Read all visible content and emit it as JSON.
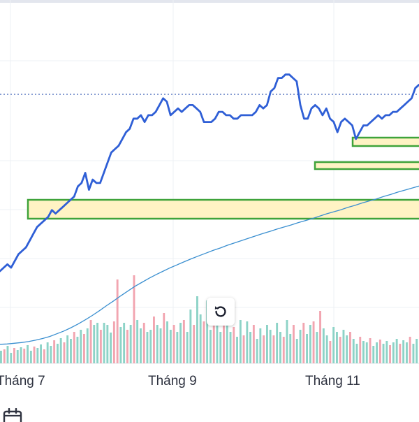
{
  "chart_data": {
    "type": "line",
    "x_tick_labels": [
      "Tháng 7",
      "Tháng 9",
      "Tháng 11"
    ],
    "series": [
      {
        "kind": "price",
        "color": "#2f5fd6",
        "values": [
          92,
          93,
          94,
          93,
          95,
          97,
          98,
          99,
          101,
          103,
          105,
          106,
          107,
          108,
          110,
          109,
          110,
          111,
          112,
          113,
          114,
          117,
          118,
          121,
          116,
          119,
          118,
          118,
          121,
          124,
          127,
          128,
          129,
          131,
          133,
          134,
          137,
          137,
          138,
          136,
          138,
          138,
          139,
          141,
          143,
          142,
          138,
          139,
          140,
          139,
          140,
          141,
          141,
          140,
          139,
          136,
          136,
          136,
          137,
          139,
          139,
          138,
          138,
          137,
          137,
          138,
          138,
          138,
          138,
          139,
          141,
          140,
          141,
          145,
          146,
          149,
          149,
          150,
          150,
          149,
          148,
          141,
          137,
          137,
          140,
          141,
          140,
          138,
          140,
          137,
          136,
          133,
          136,
          137,
          136,
          135,
          131,
          133,
          135,
          135,
          136,
          137,
          138,
          137,
          138,
          138,
          139,
          139,
          140,
          141,
          142,
          143,
          146,
          147
        ]
      },
      {
        "kind": "moving-average",
        "color": "#3a8fd0",
        "values": [
          70.4,
          70.5,
          70.7,
          70.9,
          71.2,
          71.6,
          72.1,
          72.7,
          73.5,
          74.3,
          75.3,
          76.4,
          77.6,
          78.9,
          80.3,
          81.8,
          83.2,
          84.7,
          86.1,
          87.5,
          88.7,
          89.9,
          91.0,
          92.0,
          93.0,
          93.9,
          94.8,
          95.7,
          96.5,
          97.3,
          98.1,
          98.8,
          99.6,
          100.3,
          101.0,
          101.7,
          102.4,
          103.1,
          103.7,
          104.4,
          105.0,
          105.6,
          106.3,
          106.9,
          107.5,
          108.2,
          108.9,
          109.5,
          110.1,
          110.8,
          111.4,
          112.1,
          112.7,
          113.3,
          114.0,
          114.6,
          115.3,
          115.9,
          116.5,
          117.1
        ]
      }
    ],
    "volume": {
      "colors": {
        "up": "#8dd3c7",
        "down": "#f2a5b0"
      },
      "bars": [
        [
          18,
          "u"
        ],
        [
          20,
          "d"
        ],
        [
          25,
          "u"
        ],
        [
          15,
          "u"
        ],
        [
          22,
          "d"
        ],
        [
          19,
          "u"
        ],
        [
          23,
          "u"
        ],
        [
          21,
          "d"
        ],
        [
          26,
          "u"
        ],
        [
          18,
          "u"
        ],
        [
          24,
          "d"
        ],
        [
          22,
          "u"
        ],
        [
          27,
          "u"
        ],
        [
          20,
          "d"
        ],
        [
          30,
          "u"
        ],
        [
          25,
          "u"
        ],
        [
          33,
          "d"
        ],
        [
          28,
          "u"
        ],
        [
          36,
          "u"
        ],
        [
          30,
          "d"
        ],
        [
          40,
          "u"
        ],
        [
          35,
          "u"
        ],
        [
          45,
          "d"
        ],
        [
          38,
          "u"
        ],
        [
          48,
          "u"
        ],
        [
          42,
          "d"
        ],
        [
          50,
          "u"
        ],
        [
          62,
          "d"
        ],
        [
          55,
          "u"
        ],
        [
          58,
          "u"
        ],
        [
          48,
          "d"
        ],
        [
          58,
          "u"
        ],
        [
          55,
          "u"
        ],
        [
          44,
          "u"
        ],
        [
          60,
          "d"
        ],
        [
          120,
          "d"
        ],
        [
          52,
          "u"
        ],
        [
          58,
          "u"
        ],
        [
          48,
          "d"
        ],
        [
          55,
          "u"
        ],
        [
          126,
          "d"
        ],
        [
          62,
          "u"
        ],
        [
          50,
          "u"
        ],
        [
          58,
          "d"
        ],
        [
          45,
          "u"
        ],
        [
          48,
          "u"
        ],
        [
          67,
          "d"
        ],
        [
          55,
          "u"
        ],
        [
          50,
          "u"
        ],
        [
          72,
          "d"
        ],
        [
          60,
          "u"
        ],
        [
          48,
          "u"
        ],
        [
          55,
          "d"
        ],
        [
          45,
          "u"
        ],
        [
          58,
          "u"
        ],
        [
          62,
          "d"
        ],
        [
          45,
          "u"
        ],
        [
          77,
          "u"
        ],
        [
          55,
          "d"
        ],
        [
          96,
          "u"
        ],
        [
          70,
          "u"
        ],
        [
          60,
          "d"
        ],
        [
          90,
          "u"
        ],
        [
          48,
          "u"
        ],
        [
          58,
          "d"
        ],
        [
          62,
          "u"
        ],
        [
          45,
          "u"
        ],
        [
          55,
          "d"
        ],
        [
          70,
          "u"
        ],
        [
          45,
          "u"
        ],
        [
          52,
          "d"
        ],
        [
          38,
          "u"
        ],
        [
          62,
          "u"
        ],
        [
          40,
          "d"
        ],
        [
          60,
          "u"
        ],
        [
          45,
          "u"
        ],
        [
          55,
          "d"
        ],
        [
          35,
          "u"
        ],
        [
          50,
          "u"
        ],
        [
          40,
          "d"
        ],
        [
          55,
          "u"
        ],
        [
          48,
          "u"
        ],
        [
          40,
          "d"
        ],
        [
          58,
          "u"
        ],
        [
          45,
          "u"
        ],
        [
          38,
          "d"
        ],
        [
          62,
          "u"
        ],
        [
          42,
          "u"
        ],
        [
          55,
          "d"
        ],
        [
          35,
          "u"
        ],
        [
          48,
          "u"
        ],
        [
          58,
          "d"
        ],
        [
          42,
          "u"
        ],
        [
          55,
          "u"
        ],
        [
          60,
          "d"
        ],
        [
          45,
          "u"
        ],
        [
          75,
          "d"
        ],
        [
          50,
          "u"
        ],
        [
          40,
          "u"
        ],
        [
          32,
          "d"
        ],
        [
          52,
          "u"
        ],
        [
          45,
          "u"
        ],
        [
          38,
          "d"
        ],
        [
          48,
          "u"
        ],
        [
          40,
          "u"
        ],
        [
          45,
          "d"
        ],
        [
          35,
          "u"
        ],
        [
          28,
          "u"
        ],
        [
          38,
          "d"
        ],
        [
          32,
          "u"
        ],
        [
          30,
          "u"
        ],
        [
          36,
          "d"
        ],
        [
          25,
          "u"
        ],
        [
          30,
          "u"
        ],
        [
          34,
          "d"
        ],
        [
          28,
          "u"
        ],
        [
          32,
          "u"
        ],
        [
          26,
          "d"
        ],
        [
          30,
          "u"
        ],
        [
          35,
          "u"
        ],
        [
          28,
          "d"
        ],
        [
          33,
          "u"
        ],
        [
          30,
          "u"
        ],
        [
          38,
          "d"
        ],
        [
          28,
          "u"
        ],
        [
          35,
          "u"
        ]
      ]
    },
    "zones": [
      {
        "color": "#fff3c4",
        "border": "#3fa33a"
      },
      {
        "color": "#fff3c4",
        "border": "#3fa33a"
      },
      {
        "color": "#fff3c4",
        "border": "#3fa33a"
      }
    ],
    "reference_line_color": "#3d62b8",
    "grid": true
  },
  "toolbar": {
    "reset_icon": "rotate-ccw-icon",
    "calendar_icon": "calendar-icon"
  }
}
